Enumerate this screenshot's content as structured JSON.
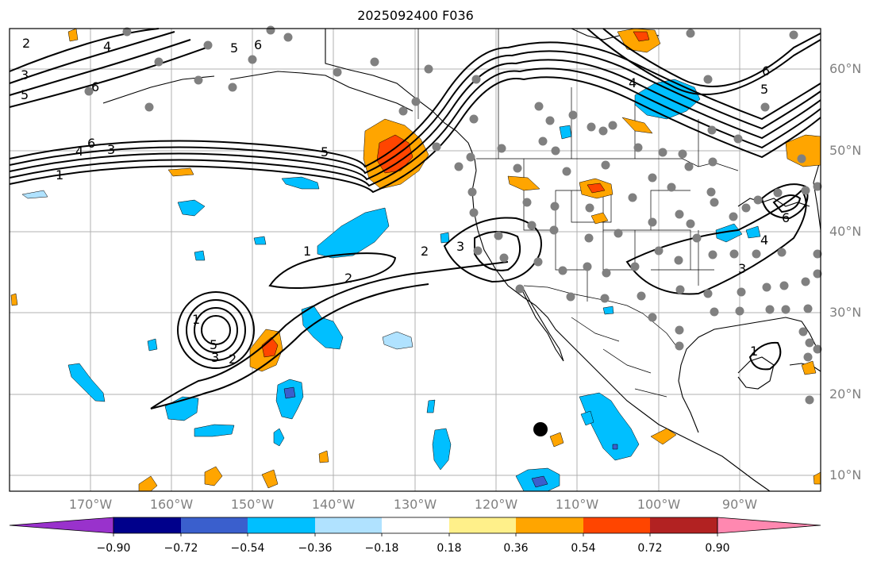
{
  "title": "2025092400 F036",
  "lon_labels": [
    "170°W",
    "160°W",
    "150°W",
    "140°W",
    "130°W",
    "120°W",
    "110°W",
    "100°W",
    "90°W"
  ],
  "lat_labels": [
    "60°N",
    "50°N",
    "40°N",
    "30°N",
    "20°N",
    "10°N"
  ],
  "colorbar": {
    "tick_labels": [
      "−0.90",
      "−0.72",
      "−0.54",
      "−0.36",
      "−0.18",
      "0.18",
      "0.36",
      "0.54",
      "0.72",
      "0.90"
    ],
    "colors": [
      "#9932cc",
      "#00008b",
      "#3a5fcd",
      "#00bfff",
      "#b0e2ff",
      "#ffffff",
      "#fff08a",
      "#ffa500",
      "#ff4500",
      "#b22222",
      "#ff88b0"
    ]
  },
  "map": {
    "extent": {
      "lon_min": -180,
      "lon_max": -80,
      "lat_min": 8,
      "lat_max": 65
    },
    "contour_labels": [
      "1",
      "2",
      "3",
      "4",
      "5",
      "6"
    ],
    "ocean_color": "#ffffff",
    "land_outline_color": "#000000",
    "grid_color": "#b0b0b0",
    "station_color": "#808080"
  }
}
